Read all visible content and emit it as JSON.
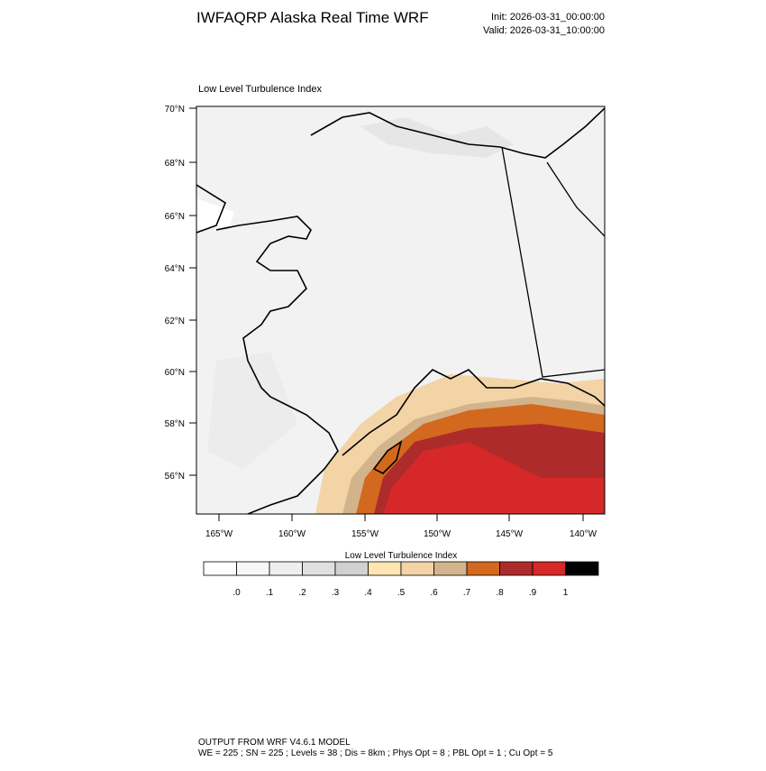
{
  "header": {
    "title": "IWFAQRP Alaska Real Time WRF",
    "init": "Init: 2026-03-31_00:00:00",
    "valid": "Valid: 2026-03-31_10:00:00"
  },
  "map": {
    "title": "Low Level Turbulence Index",
    "lat_labels": [
      "70°N",
      "68°N",
      "66°N",
      "64°N",
      "62°N",
      "60°N",
      "58°N",
      "56°N"
    ],
    "lon_labels": [
      "165°W",
      "160°W",
      "155°W",
      "150°W",
      "145°W",
      "140°W"
    ]
  },
  "colorbar": {
    "title": "Low Level Turbulence Index",
    "colors": [
      "#ffffff",
      "#f7f7f7",
      "#efefef",
      "#e0e0e0",
      "#d1d1d1",
      "#ffe5b4",
      "#f3d4a7",
      "#d2b48c",
      "#d2691e",
      "#ad2b2b",
      "#d62828",
      "#000000"
    ],
    "labels": [
      ".0",
      ".1",
      ".2",
      ".3",
      ".4",
      ".5",
      ".6",
      ".7",
      ".8",
      ".9",
      "1"
    ]
  },
  "footer": {
    "line1": "OUTPUT FROM WRF V4.6.1 MODEL",
    "line2": "WE = 225 ; SN = 225 ; Levels = 38 ; Dis = 8km ; Phys Opt = 8 ; PBL Opt = 1 ; Cu Opt = 5"
  }
}
